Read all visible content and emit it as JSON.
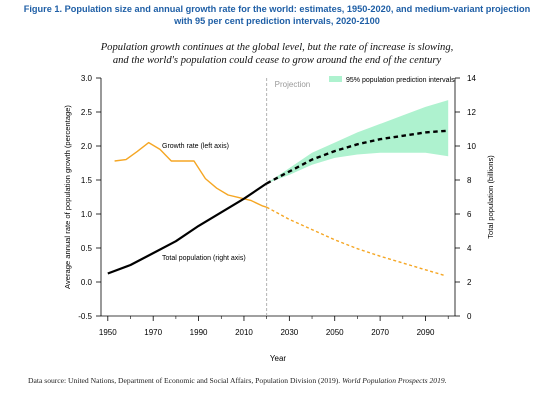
{
  "figure": {
    "title_line1": "Figure 1. Population size and annual growth rate for the world: estimates, 1950-2020, and medium-variant projection",
    "title_line2": "with 95 per cent prediction intervals, 2020-2100",
    "subtitle_line1": "Population growth continues at the global level, but the rate of increase is slowing,",
    "subtitle_line2": "and the world's population could cease to grow around the end of the century",
    "source_prefix": "Data source: United Nations, Department of Economic and Social Affairs, Population Division (2019). ",
    "source_title": "World Population Prospects 2019."
  },
  "chart_data": {
    "type": "line",
    "xlabel": "Year",
    "ylabel_left": "Average annual rate of population growth (percentage)",
    "ylabel_right": "Total population (billions)",
    "xlim": [
      1947,
      2103
    ],
    "ylim_left": [
      -0.5,
      3.0
    ],
    "ylim_right": [
      0,
      14
    ],
    "x_ticks": [
      1950,
      1970,
      1990,
      2010,
      2030,
      2050,
      2070,
      2090
    ],
    "x_minor_ticks": [
      1960,
      1980,
      2000,
      2020,
      2040,
      2060,
      2080,
      2100
    ],
    "y_ticks_left": [
      -0.5,
      0.0,
      0.5,
      1.0,
      1.5,
      2.0,
      2.5,
      3.0
    ],
    "y_ticks_right": [
      0,
      2,
      4,
      6,
      8,
      10,
      12,
      14
    ],
    "grid": false,
    "legend_position": "top-right",
    "projection_start": 2020,
    "projection_label": "Projection",
    "legend": {
      "band_label": "95% population prediction intervals"
    },
    "colors": {
      "growth": "#f5a623",
      "population": "#000000",
      "band": "#aef2cf",
      "divider": "#aaaaaa"
    },
    "series": [
      {
        "name": "Growth rate (left axis)",
        "axis": "left",
        "style": "solid",
        "x": [
          1953,
          1958,
          1963,
          1968,
          1973,
          1978,
          1983,
          1988,
          1993,
          1998,
          2003,
          2008,
          2013,
          2018,
          2020
        ],
        "y": [
          1.78,
          1.8,
          1.92,
          2.05,
          1.95,
          1.78,
          1.78,
          1.78,
          1.52,
          1.38,
          1.28,
          1.24,
          1.2,
          1.12,
          1.1
        ]
      },
      {
        "name": "Growth rate projection",
        "axis": "left",
        "style": "dotted",
        "x": [
          2020,
          2030,
          2040,
          2050,
          2060,
          2070,
          2080,
          2090,
          2098
        ],
        "y": [
          1.1,
          0.92,
          0.77,
          0.62,
          0.49,
          0.38,
          0.28,
          0.18,
          0.1
        ]
      },
      {
        "name": "Total population (right axis)",
        "axis": "right",
        "style": "solid",
        "x": [
          1950,
          1960,
          1970,
          1980,
          1990,
          2000,
          2010,
          2020
        ],
        "y": [
          2.5,
          3.0,
          3.7,
          4.4,
          5.3,
          6.1,
          6.9,
          7.8
        ]
      },
      {
        "name": "Total population projection",
        "axis": "right",
        "style": "dashed",
        "x": [
          2020,
          2030,
          2040,
          2050,
          2060,
          2070,
          2080,
          2090,
          2100
        ],
        "y": [
          7.8,
          8.5,
          9.2,
          9.7,
          10.1,
          10.4,
          10.6,
          10.8,
          10.9
        ]
      }
    ],
    "band": {
      "axis": "right",
      "x": [
        2020,
        2030,
        2040,
        2050,
        2060,
        2070,
        2080,
        2090,
        2100
      ],
      "lower": [
        7.8,
        8.3,
        8.9,
        9.3,
        9.5,
        9.6,
        9.6,
        9.6,
        9.4
      ],
      "upper": [
        7.8,
        8.7,
        9.6,
        10.2,
        10.8,
        11.3,
        11.8,
        12.3,
        12.7
      ]
    },
    "annotations": [
      {
        "text": "Growth rate (left axis)",
        "series": "Growth rate (left axis)"
      },
      {
        "text": "Total population (right axis)",
        "series": "Total population (right axis)"
      }
    ]
  }
}
